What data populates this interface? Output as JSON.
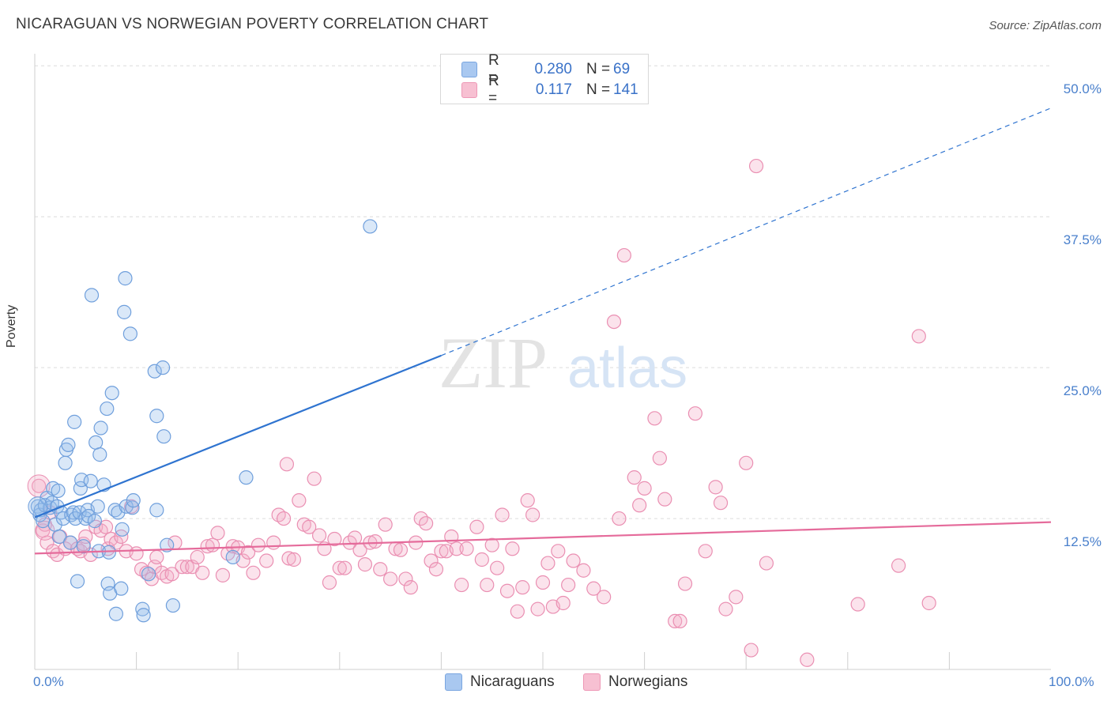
{
  "header": {
    "title": "NICARAGUAN VS NORWEGIAN POVERTY CORRELATION CHART",
    "source": "Source: ZipAtlas.com"
  },
  "watermark": {
    "zip": "ZIP",
    "atlas": "atlas"
  },
  "legend": {
    "rows": [
      {
        "key": "R =",
        "r": "0.280",
        "n_label": "N =",
        "n": "69",
        "color": "#a9c8f0",
        "border": "#7aa6e0"
      },
      {
        "key": "R =",
        "r": "0.117",
        "n_label": "N =",
        "n": "141",
        "color": "#f7c0d2",
        "border": "#ee98b6"
      }
    ]
  },
  "bottom_legend": {
    "nicaraguans": "Nicaraguans",
    "norwegians": "Norwegians"
  },
  "colors": {
    "blue_fill": "rgba(150,188,236,0.35)",
    "blue_stroke": "#6f9fdc",
    "blue_line": "#2f74d0",
    "pink_fill": "rgba(244,176,200,0.35)",
    "pink_stroke": "#ea8fb2",
    "pink_line": "#e56b9b",
    "grid": "#dcdcdc",
    "tick_label": "#4a80cc"
  },
  "chart_data": {
    "type": "scatter",
    "title": "NICARAGUAN VS NORWEGIAN POVERTY CORRELATION CHART",
    "ylabel": "Poverty",
    "xlabel": "",
    "xlim": [
      0,
      100
    ],
    "ylim": [
      0,
      51
    ],
    "y_ticks": [
      {
        "value": 12.5,
        "label": "12.5%"
      },
      {
        "value": 25.0,
        "label": "25.0%"
      },
      {
        "value": 37.5,
        "label": "37.5%"
      },
      {
        "value": 50.0,
        "label": "50.0%"
      }
    ],
    "x_tick_labels": {
      "min": "0.0%",
      "max": "100.0%"
    },
    "grid": true,
    "legend_position": "top-center",
    "series": [
      {
        "name": "Nicaraguans",
        "r": 0.28,
        "n": 69,
        "trend": {
          "x0": 0,
          "y0": 12.6,
          "x1": 40,
          "y1": 26.0,
          "dashed_to_x": 100,
          "dashed_to_y": 46.5
        },
        "points": [
          [
            0.3,
            13.5
          ],
          [
            0.5,
            12.8
          ],
          [
            0.6,
            13.2
          ],
          [
            0.8,
            12.3
          ],
          [
            1.0,
            13.6
          ],
          [
            1.2,
            14.2
          ],
          [
            1.5,
            13.4
          ],
          [
            1.7,
            13.8
          ],
          [
            1.8,
            15.0
          ],
          [
            2.0,
            12.0
          ],
          [
            2.2,
            13.5
          ],
          [
            2.3,
            14.8
          ],
          [
            2.4,
            11.0
          ],
          [
            2.6,
            13.0
          ],
          [
            2.8,
            12.5
          ],
          [
            3.0,
            17.1
          ],
          [
            3.1,
            18.2
          ],
          [
            3.3,
            18.6
          ],
          [
            3.5,
            10.5
          ],
          [
            3.6,
            12.8
          ],
          [
            3.8,
            13.0
          ],
          [
            3.9,
            20.5
          ],
          [
            4.0,
            12.5
          ],
          [
            4.2,
            7.3
          ],
          [
            4.4,
            13.0
          ],
          [
            4.5,
            15.0
          ],
          [
            4.6,
            15.7
          ],
          [
            4.8,
            10.2
          ],
          [
            5.0,
            12.5
          ],
          [
            5.2,
            13.2
          ],
          [
            5.3,
            12.7
          ],
          [
            5.5,
            15.6
          ],
          [
            5.6,
            31.0
          ],
          [
            5.9,
            12.3
          ],
          [
            6.0,
            18.8
          ],
          [
            6.2,
            13.5
          ],
          [
            6.3,
            9.8
          ],
          [
            6.4,
            17.8
          ],
          [
            6.5,
            20.0
          ],
          [
            6.8,
            15.3
          ],
          [
            7.1,
            21.6
          ],
          [
            7.2,
            7.1
          ],
          [
            7.3,
            9.7
          ],
          [
            7.4,
            6.3
          ],
          [
            7.6,
            22.9
          ],
          [
            7.9,
            13.2
          ],
          [
            8.0,
            4.6
          ],
          [
            8.2,
            13.0
          ],
          [
            8.5,
            6.7
          ],
          [
            8.6,
            11.6
          ],
          [
            8.8,
            29.6
          ],
          [
            8.9,
            32.4
          ],
          [
            9.0,
            13.5
          ],
          [
            9.4,
            27.8
          ],
          [
            9.6,
            13.4
          ],
          [
            9.7,
            14.0
          ],
          [
            10.6,
            5.0
          ],
          [
            10.7,
            4.5
          ],
          [
            11.2,
            7.9
          ],
          [
            11.8,
            24.7
          ],
          [
            12.0,
            21.0
          ],
          [
            12.0,
            13.2
          ],
          [
            12.6,
            25.0
          ],
          [
            12.7,
            19.3
          ],
          [
            13.0,
            10.3
          ],
          [
            13.6,
            5.3
          ],
          [
            19.5,
            9.3
          ],
          [
            20.8,
            15.9
          ],
          [
            33.0,
            36.7
          ]
        ]
      },
      {
        "name": "Norwegians",
        "r": 0.117,
        "n": 141,
        "trend": {
          "x0": 0,
          "y0": 9.6,
          "x1": 100,
          "y1": 12.2
        },
        "points": [
          [
            0.4,
            15.2
          ],
          [
            0.8,
            11.5
          ],
          [
            1.0,
            12.0
          ],
          [
            1.2,
            10.5
          ],
          [
            1.5,
            13.0
          ],
          [
            1.8,
            9.8
          ],
          [
            2.2,
            9.5
          ],
          [
            2.5,
            11.0
          ],
          [
            3.0,
            10.0
          ],
          [
            3.5,
            10.5
          ],
          [
            4.2,
            10.0
          ],
          [
            4.5,
            9.8
          ],
          [
            4.8,
            10.4
          ],
          [
            5.0,
            11.0
          ],
          [
            5.5,
            9.5
          ],
          [
            6.0,
            11.8
          ],
          [
            6.5,
            11.5
          ],
          [
            7.0,
            11.8
          ],
          [
            7.2,
            10.0
          ],
          [
            7.5,
            10.8
          ],
          [
            8.0,
            10.5
          ],
          [
            8.5,
            11.0
          ],
          [
            9.0,
            9.8
          ],
          [
            9.5,
            13.5
          ],
          [
            10.0,
            9.6
          ],
          [
            10.5,
            8.3
          ],
          [
            11.0,
            8.0
          ],
          [
            11.5,
            7.5
          ],
          [
            11.8,
            8.5
          ],
          [
            12.0,
            9.3
          ],
          [
            12.5,
            8.0
          ],
          [
            13.0,
            7.7
          ],
          [
            13.5,
            7.9
          ],
          [
            13.8,
            10.5
          ],
          [
            14.5,
            8.5
          ],
          [
            15.0,
            8.5
          ],
          [
            15.5,
            8.5
          ],
          [
            16.0,
            9.3
          ],
          [
            16.5,
            8.0
          ],
          [
            17.0,
            10.2
          ],
          [
            17.5,
            10.3
          ],
          [
            18.0,
            11.3
          ],
          [
            18.5,
            7.8
          ],
          [
            19.0,
            9.6
          ],
          [
            19.5,
            10.2
          ],
          [
            20.0,
            10.1
          ],
          [
            20.5,
            9.0
          ],
          [
            21.0,
            9.7
          ],
          [
            21.5,
            8.0
          ],
          [
            22.0,
            10.3
          ],
          [
            22.8,
            9.0
          ],
          [
            23.5,
            10.5
          ],
          [
            24.0,
            12.8
          ],
          [
            24.5,
            12.5
          ],
          [
            24.8,
            17.0
          ],
          [
            25.0,
            9.2
          ],
          [
            25.5,
            9.1
          ],
          [
            26.0,
            14.0
          ],
          [
            26.5,
            12.0
          ],
          [
            27.0,
            11.8
          ],
          [
            27.5,
            15.8
          ],
          [
            28.0,
            11.1
          ],
          [
            28.5,
            10.0
          ],
          [
            29.0,
            7.2
          ],
          [
            29.5,
            10.8
          ],
          [
            30.0,
            8.4
          ],
          [
            30.5,
            8.4
          ],
          [
            31.0,
            10.5
          ],
          [
            31.5,
            10.9
          ],
          [
            32.0,
            9.9
          ],
          [
            32.5,
            8.7
          ],
          [
            33.0,
            10.5
          ],
          [
            33.5,
            10.6
          ],
          [
            34.0,
            8.3
          ],
          [
            34.5,
            12.0
          ],
          [
            35.0,
            7.5
          ],
          [
            35.5,
            10.0
          ],
          [
            36.0,
            9.9
          ],
          [
            36.5,
            7.5
          ],
          [
            37.0,
            6.8
          ],
          [
            37.5,
            10.5
          ],
          [
            38.0,
            12.5
          ],
          [
            38.5,
            12.1
          ],
          [
            39.0,
            9.0
          ],
          [
            39.5,
            8.3
          ],
          [
            40.0,
            9.8
          ],
          [
            40.5,
            9.8
          ],
          [
            41.0,
            11.0
          ],
          [
            41.5,
            10.0
          ],
          [
            42.0,
            7.0
          ],
          [
            42.5,
            10.0
          ],
          [
            43.5,
            11.8
          ],
          [
            44.0,
            9.1
          ],
          [
            44.5,
            7.0
          ],
          [
            45.0,
            10.3
          ],
          [
            45.5,
            8.4
          ],
          [
            46.0,
            12.8
          ],
          [
            46.5,
            6.5
          ],
          [
            47.0,
            10.0
          ],
          [
            47.5,
            4.8
          ],
          [
            48.0,
            6.8
          ],
          [
            48.5,
            14.0
          ],
          [
            49.0,
            12.8
          ],
          [
            49.5,
            5.0
          ],
          [
            50.0,
            7.2
          ],
          [
            50.5,
            8.8
          ],
          [
            51.0,
            5.2
          ],
          [
            51.5,
            9.8
          ],
          [
            52.0,
            5.5
          ],
          [
            52.5,
            7.0
          ],
          [
            53.0,
            9.0
          ],
          [
            54.0,
            8.2
          ],
          [
            55.0,
            6.7
          ],
          [
            56.0,
            6.0
          ],
          [
            57.0,
            28.8
          ],
          [
            57.5,
            12.5
          ],
          [
            58.0,
            34.3
          ],
          [
            59.0,
            15.9
          ],
          [
            59.5,
            13.6
          ],
          [
            60.0,
            15.0
          ],
          [
            61.0,
            20.8
          ],
          [
            61.5,
            17.5
          ],
          [
            62.0,
            14.1
          ],
          [
            63.0,
            4.0
          ],
          [
            63.5,
            4.0
          ],
          [
            64.0,
            7.1
          ],
          [
            65.0,
            21.2
          ],
          [
            66.0,
            9.8
          ],
          [
            67.0,
            15.1
          ],
          [
            67.5,
            13.8
          ],
          [
            68.0,
            5.0
          ],
          [
            69.0,
            6.0
          ],
          [
            70.0,
            17.1
          ],
          [
            70.5,
            1.6
          ],
          [
            71.0,
            41.7
          ],
          [
            72.0,
            8.8
          ],
          [
            76.0,
            0.8
          ],
          [
            81.0,
            5.4
          ],
          [
            85.0,
            8.6
          ],
          [
            87.0,
            27.6
          ],
          [
            88.0,
            5.5
          ]
        ]
      }
    ]
  }
}
